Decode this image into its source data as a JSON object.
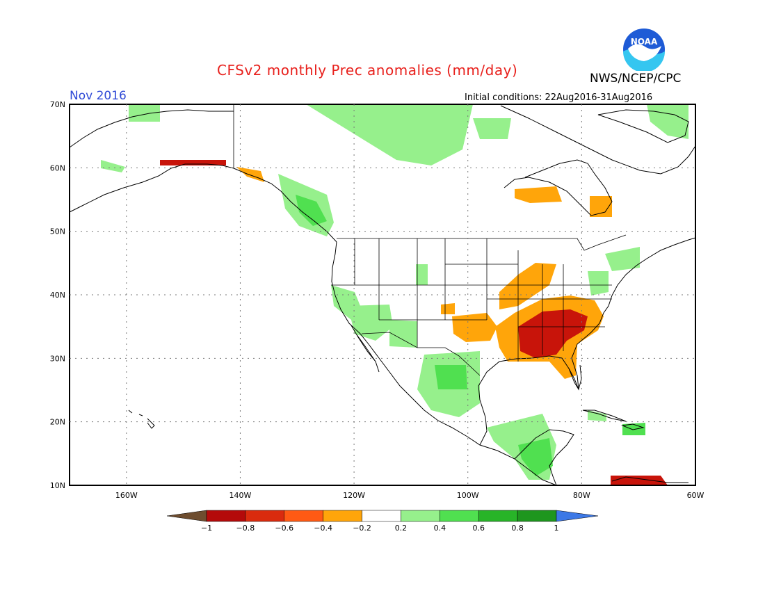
{
  "header": {
    "title": "CFSv2 monthly Prec anomalies (mm/day)",
    "organization": "NWS/NCEP/CPC",
    "period": "Nov 2016",
    "initial_conditions": "Initial conditions: 22Aug2016-31Aug2016",
    "logo_text": "NOAA"
  },
  "map": {
    "lat_labels": [
      "70N",
      "60N",
      "50N",
      "40N",
      "30N",
      "20N",
      "10N"
    ],
    "lon_labels": [
      "160W",
      "140W",
      "120W",
      "100W",
      "80W",
      "60W"
    ],
    "lat_range": [
      10,
      70
    ],
    "lon_range": [
      -170,
      -60
    ],
    "grid": true
  },
  "legend": {
    "labels": [
      "−1",
      "−0.8",
      "−0.6",
      "−0.4",
      "−0.2",
      "0.2",
      "0.4",
      "0.6",
      "0.8",
      "1"
    ],
    "colors": [
      "#6e4d2f",
      "#b40a0a",
      "#da2b0e",
      "#ff5a14",
      "#ffa50a",
      "#ffffff",
      "#96f08c",
      "#50e050",
      "#28b428",
      "#1e961e",
      "#3c78e6"
    ]
  },
  "colors": {
    "title": "#e8201c",
    "period": "#2f4ad6",
    "dry_strong": "#c8140a",
    "dry": "#ffa50a",
    "wet": "#96f08c",
    "wet_mid": "#50e050",
    "wet_strong": "#1e961e"
  }
}
